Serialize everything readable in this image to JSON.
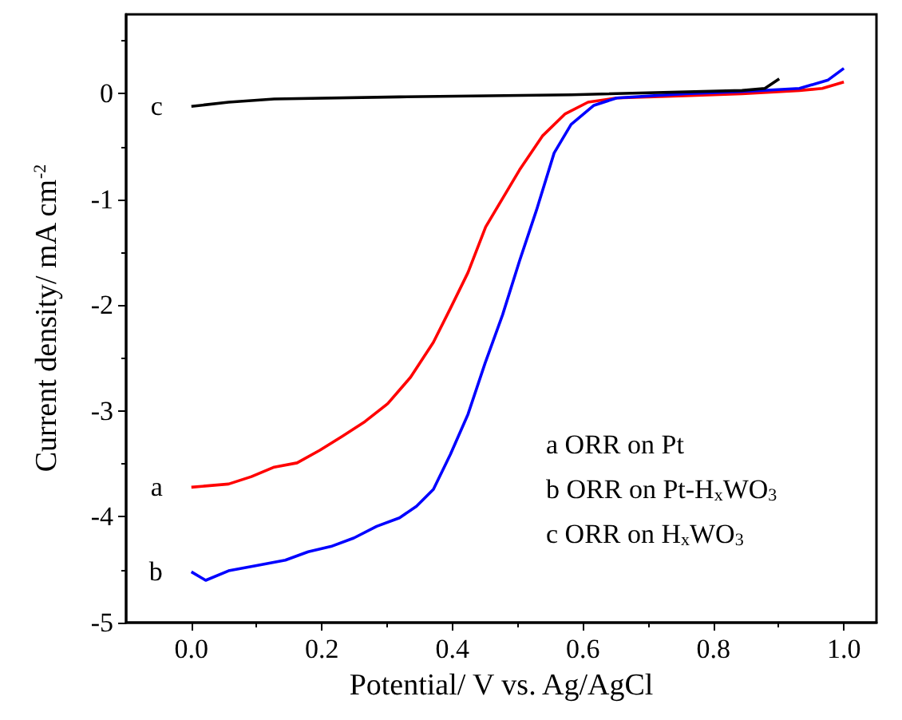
{
  "chart_data": {
    "type": "line",
    "xlabel": "Potential/ V vs. Ag/AgCl",
    "ylabel": "Current density/ mA cm$^{-2}$",
    "xlim": [
      -0.1,
      1.05
    ],
    "xticks": [
      {
        "value": 0,
        "label": "0.0"
      },
      0.2,
      0.4,
      0.6,
      0.8,
      {
        "value": 1,
        "label": "1.0"
      }
    ],
    "ylim": [
      -5,
      0.75
    ],
    "yticks": [
      -5,
      -4,
      -3,
      -2,
      -1,
      0
    ],
    "grid": false,
    "legend": false,
    "marker": "none",
    "line_style": "solid",
    "series": [
      {
        "name": "a",
        "color": "#ff0000",
        "x": [
          0,
          0.057,
          0.092,
          0.127,
          0.162,
          0.197,
          0.231,
          0.266,
          0.301,
          0.336,
          0.371,
          0.397,
          0.424,
          0.451,
          0.477,
          0.503,
          0.538,
          0.573,
          0.608,
          0.652,
          0.757,
          0.844,
          0.932,
          0.967,
          1.0
        ],
        "values": [
          -3.72,
          -3.69,
          -3.62,
          -3.53,
          -3.49,
          -3.37,
          -3.24,
          -3.1,
          -2.93,
          -2.68,
          -2.35,
          -2.03,
          -1.69,
          -1.26,
          -0.99,
          -0.72,
          -0.4,
          -0.19,
          -0.08,
          -0.04,
          -0.02,
          0,
          0.03,
          0.05,
          0.11
        ]
      },
      {
        "name": "b",
        "color": "#0000ff",
        "x": [
          0,
          0.022,
          0.057,
          0.1,
          0.144,
          0.179,
          0.214,
          0.249,
          0.284,
          0.319,
          0.345,
          0.371,
          0.397,
          0.424,
          0.45,
          0.477,
          0.503,
          0.529,
          0.556,
          0.582,
          0.617,
          0.652,
          0.757,
          0.844,
          0.932,
          0.976,
          1.0
        ],
        "values": [
          -4.52,
          -4.6,
          -4.51,
          -4.46,
          -4.41,
          -4.33,
          -4.28,
          -4.2,
          -4.09,
          -4.01,
          -3.9,
          -3.74,
          -3.41,
          -3.03,
          -2.55,
          -2.09,
          -1.58,
          -1.1,
          -0.56,
          -0.29,
          -0.11,
          -0.04,
          0,
          0.02,
          0.05,
          0.13,
          0.24
        ]
      },
      {
        "name": "c",
        "color": "#000000",
        "x": [
          0,
          0.057,
          0.127,
          0.319,
          0.582,
          0.844,
          0.879,
          0.901
        ],
        "values": [
          -0.12,
          -0.08,
          -0.05,
          -0.03,
          -0.01,
          0.03,
          0.05,
          0.14
        ]
      }
    ],
    "annotations": [
      "a ORR on Pt",
      "b ORR on Pt-H$_{x}$WO$_{3}$",
      "c ORR on H$_{x}$WO$_{3}$"
    ]
  }
}
